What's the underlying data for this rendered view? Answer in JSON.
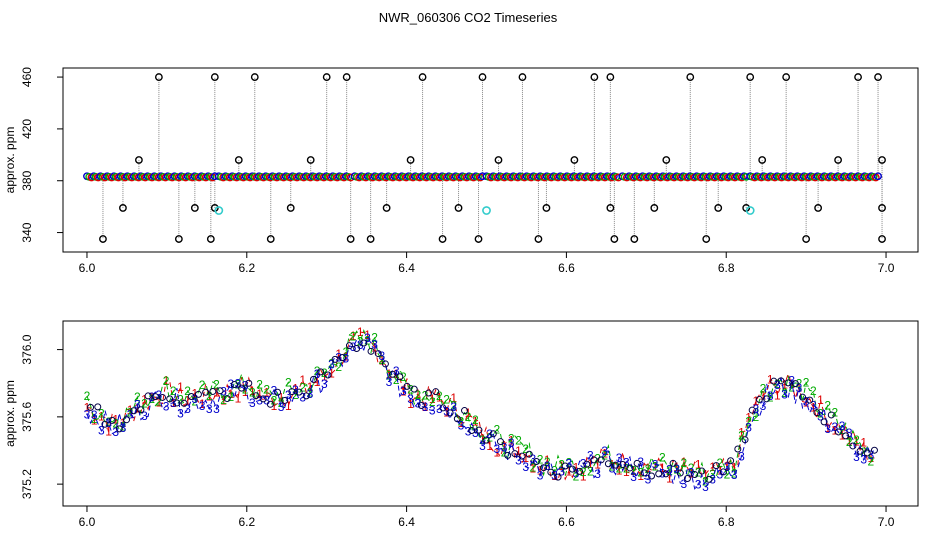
{
  "title": "NWR_060306  CO2 Timeseries",
  "chart_data": [
    {
      "type": "scatter",
      "title": "",
      "xlabel": "",
      "ylabel": "approx. ppm",
      "xlim": [
        5.97,
        7.04
      ],
      "ylim": [
        325,
        467
      ],
      "x_ticks": [
        "6.0",
        "6.2",
        "6.4",
        "6.6",
        "6.8",
        "7.0"
      ],
      "y_ticks": [
        "340",
        "380",
        "420",
        "460"
      ],
      "x_tick_values": [
        6.0,
        6.2,
        6.4,
        6.6,
        6.8,
        7.0
      ],
      "y_tick_values": [
        340,
        380,
        420,
        460
      ],
      "baseline": {
        "segments": [
          [
            6.0,
            6.16
          ],
          [
            6.165,
            6.33
          ],
          [
            6.335,
            6.495
          ],
          [
            6.5,
            6.665
          ],
          [
            6.67,
            6.825
          ],
          [
            6.83,
            6.99
          ]
        ],
        "value": 383,
        "colors": [
          "#0000cc",
          "#00aa00",
          "#dd0000"
        ]
      },
      "high_outliers": {
        "x": [
          6.09,
          6.16,
          6.21,
          6.3,
          6.325,
          6.42,
          6.495,
          6.545,
          6.635,
          6.655,
          6.755,
          6.83,
          6.875,
          6.965,
          6.99
        ],
        "value": 460
      },
      "mid_outliers": {
        "x": [
          6.065,
          6.19,
          6.28,
          6.405,
          6.515,
          6.61,
          6.725,
          6.845,
          6.94,
          6.995
        ],
        "value": 396
      },
      "low_outliers": {
        "x": [
          6.045,
          6.135,
          6.16,
          6.255,
          6.375,
          6.465,
          6.575,
          6.655,
          6.71,
          6.79,
          6.825,
          6.915,
          6.995
        ],
        "value": 359
      },
      "bottom_outliers": {
        "x": [
          6.02,
          6.115,
          6.155,
          6.23,
          6.33,
          6.355,
          6.445,
          6.49,
          6.565,
          6.66,
          6.685,
          6.775,
          6.9,
          6.995
        ],
        "value": 335
      },
      "cyan_points": {
        "x": [
          6.165,
          6.5,
          6.83
        ],
        "value": 357
      },
      "color_outlier": "#000000",
      "color_cyan": "#33cccc",
      "color_drop": "#888888"
    },
    {
      "type": "line",
      "title": "",
      "xlabel": "",
      "ylabel": "approx. ppm",
      "xlim": [
        5.97,
        7.04
      ],
      "ylim": [
        375.07,
        376.17
      ],
      "x_ticks": [
        "6.0",
        "6.2",
        "6.4",
        "6.6",
        "6.8",
        "7.0"
      ],
      "y_ticks": [
        "375.2",
        "375.6",
        "376.0"
      ],
      "x_tick_values": [
        6.0,
        6.2,
        6.4,
        6.6,
        6.8,
        7.0
      ],
      "y_tick_values": [
        375.2,
        375.6,
        376.0
      ],
      "trend": {
        "x": [
          6.0,
          6.02,
          6.03,
          6.05,
          6.08,
          6.1,
          6.12,
          6.15,
          6.18,
          6.2,
          6.22,
          6.25,
          6.27,
          6.3,
          6.33,
          6.35,
          6.37,
          6.39,
          6.41,
          6.44,
          6.47,
          6.5,
          6.52,
          6.55,
          6.57,
          6.6,
          6.63,
          6.65,
          6.68,
          6.7,
          6.73,
          6.76,
          6.78,
          6.8,
          6.81,
          6.83,
          6.85,
          6.87,
          6.9,
          6.92,
          6.95,
          6.97,
          6.99
        ],
        "y": [
          375.65,
          375.6,
          375.55,
          375.6,
          375.7,
          375.75,
          375.7,
          375.72,
          375.75,
          375.78,
          375.7,
          375.72,
          375.75,
          375.85,
          376.02,
          376.05,
          375.95,
          375.8,
          375.72,
          375.7,
          375.62,
          375.48,
          375.42,
          375.38,
          375.3,
          375.28,
          375.32,
          375.35,
          375.32,
          375.3,
          375.28,
          375.26,
          375.25,
          375.28,
          375.3,
          375.6,
          375.75,
          375.8,
          375.72,
          375.62,
          375.5,
          375.4,
          375.35
        ]
      },
      "series": [
        {
          "label": "1",
          "color": "#dd0000",
          "offset": 0.02
        },
        {
          "label": "2",
          "color": "#00aa00",
          "offset": 0.06
        },
        {
          "label": "3",
          "color": "#0000cc",
          "offset": -0.06
        }
      ]
    }
  ]
}
